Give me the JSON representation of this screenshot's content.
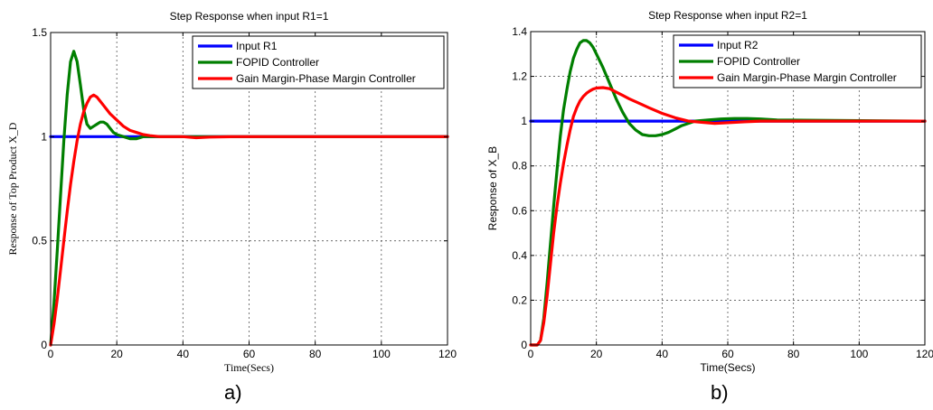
{
  "chart_data": [
    {
      "type": "line",
      "title": "Step Response when input R1=1",
      "xlabel": "Time(Secs)",
      "ylabel": "Response of Top Product X_D",
      "xlim": [
        0,
        120
      ],
      "ylim": [
        0,
        1.5
      ],
      "xticks": [
        0,
        20,
        40,
        60,
        80,
        100,
        120
      ],
      "yticks": [
        0,
        0.5,
        1,
        1.5
      ],
      "xtick_labels": [
        "0",
        "20",
        "40",
        "60",
        "80",
        "100",
        "120"
      ],
      "ytick_labels": [
        "0",
        "0.5",
        "1",
        "1.5"
      ],
      "grid": true,
      "legend_position": "top-right",
      "caption": "a)",
      "series": [
        {
          "name": "Input R1",
          "color": "#0000ff",
          "x": [
            0,
            120
          ],
          "y": [
            1,
            1
          ]
        },
        {
          "name": "FOPID Controller",
          "color": "#007f00",
          "x": [
            0,
            1,
            2,
            3,
            4,
            5,
            6,
            7,
            8,
            9,
            10,
            11,
            12,
            13,
            14,
            15,
            16,
            17,
            18,
            19,
            20,
            22,
            24,
            26,
            28,
            30,
            35,
            40,
            50,
            120
          ],
          "y": [
            0,
            0.2,
            0.45,
            0.72,
            0.98,
            1.2,
            1.36,
            1.41,
            1.36,
            1.25,
            1.13,
            1.06,
            1.04,
            1.05,
            1.06,
            1.07,
            1.07,
            1.06,
            1.04,
            1.02,
            1.01,
            1.0,
            0.99,
            0.99,
            1.0,
            1.0,
            1.0,
            1.0,
            1.0,
            1.0
          ]
        },
        {
          "name": "Gain Margin-Phase Margin Controller",
          "color": "#ff0000",
          "x": [
            0,
            1,
            2,
            3,
            4,
            5,
            6,
            7,
            8,
            9,
            10,
            11,
            12,
            13,
            14,
            15,
            16,
            18,
            20,
            22,
            24,
            26,
            28,
            30,
            33,
            36,
            40,
            44,
            48,
            55,
            120
          ],
          "y": [
            0,
            0.1,
            0.22,
            0.36,
            0.5,
            0.64,
            0.77,
            0.88,
            0.98,
            1.06,
            1.12,
            1.16,
            1.19,
            1.2,
            1.19,
            1.17,
            1.15,
            1.11,
            1.08,
            1.05,
            1.03,
            1.02,
            1.01,
            1.005,
            1.0,
            1.0,
            1.0,
            0.995,
            0.998,
            1.0,
            1.0
          ]
        }
      ]
    },
    {
      "type": "line",
      "title": "Step Response when input R2=1",
      "xlabel": "Time(Secs)",
      "ylabel": "Response of X_B",
      "xlim": [
        0,
        120
      ],
      "ylim": [
        0,
        1.4
      ],
      "xticks": [
        0,
        20,
        40,
        60,
        80,
        100,
        120
      ],
      "yticks": [
        0,
        0.2,
        0.4,
        0.6,
        0.8,
        1,
        1.2,
        1.4
      ],
      "xtick_labels": [
        "0",
        "20",
        "40",
        "60",
        "80",
        "100",
        "120"
      ],
      "ytick_labels": [
        "0",
        "0.2",
        "0.4",
        "0.6",
        "0.8",
        "1",
        "1.2",
        "1.4"
      ],
      "grid": true,
      "legend_position": "top-right",
      "caption": "b)",
      "series": [
        {
          "name": "Input R2",
          "color": "#0000ff",
          "x": [
            0,
            120
          ],
          "y": [
            1,
            1
          ]
        },
        {
          "name": "FOPID Controller",
          "color": "#007f00",
          "x": [
            0,
            2,
            3,
            4,
            5,
            6,
            7,
            8,
            9,
            10,
            11,
            12,
            13,
            14,
            15,
            16,
            17,
            18,
            19,
            20,
            22,
            24,
            26,
            28,
            30,
            32,
            34,
            36,
            38,
            40,
            42,
            44,
            46,
            48,
            50,
            54,
            58,
            62,
            66,
            70,
            75,
            120
          ],
          "y": [
            0,
            0,
            0.02,
            0.12,
            0.28,
            0.45,
            0.62,
            0.78,
            0.93,
            1.05,
            1.14,
            1.22,
            1.28,
            1.32,
            1.35,
            1.36,
            1.36,
            1.35,
            1.33,
            1.3,
            1.24,
            1.17,
            1.1,
            1.04,
            0.99,
            0.96,
            0.94,
            0.935,
            0.935,
            0.94,
            0.95,
            0.965,
            0.98,
            0.99,
            1.0,
            1.005,
            1.01,
            1.012,
            1.012,
            1.01,
            1.005,
            1.0
          ]
        },
        {
          "name": "Gain Margin-Phase Margin Controller",
          "color": "#ff0000",
          "x": [
            0,
            2,
            3,
            4,
            5,
            6,
            7,
            8,
            9,
            10,
            11,
            12,
            13,
            14,
            15,
            16,
            17,
            18,
            19,
            20,
            22,
            24,
            26,
            28,
            30,
            33,
            36,
            40,
            44,
            48,
            52,
            56,
            60,
            65,
            70,
            80,
            120
          ],
          "y": [
            0,
            0,
            0.02,
            0.1,
            0.22,
            0.36,
            0.5,
            0.62,
            0.72,
            0.81,
            0.89,
            0.96,
            1.02,
            1.06,
            1.09,
            1.11,
            1.125,
            1.135,
            1.143,
            1.148,
            1.15,
            1.145,
            1.13,
            1.115,
            1.1,
            1.08,
            1.06,
            1.035,
            1.015,
            1.0,
            0.995,
            0.99,
            0.993,
            0.997,
            1.0,
            1.0,
            1.0
          ]
        }
      ]
    }
  ]
}
